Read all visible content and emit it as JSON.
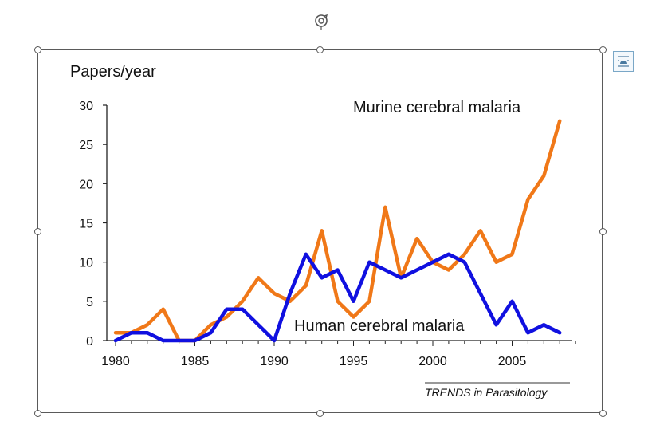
{
  "chart_data": {
    "type": "line",
    "ylabel": "Papers/year",
    "xlim": [
      1980,
      2009
    ],
    "ylim": [
      0,
      30
    ],
    "xticks": [
      1980,
      1985,
      1990,
      1995,
      2000,
      2005
    ],
    "yticks": [
      0,
      5,
      10,
      15,
      20,
      25,
      30
    ],
    "grid": false,
    "source": "TRENDS in Parasitology",
    "x": [
      1980,
      1981,
      1982,
      1983,
      1984,
      1985,
      1986,
      1987,
      1988,
      1989,
      1990,
      1991,
      1992,
      1993,
      1994,
      1995,
      1996,
      1997,
      1998,
      1999,
      2000,
      2001,
      2002,
      2003,
      2004,
      2005,
      2006,
      2007,
      2008
    ],
    "series": [
      {
        "name": "Murine cerebral malaria",
        "color": "#f07818",
        "values": [
          1,
          1,
          2,
          4,
          0,
          0,
          2,
          3,
          5,
          8,
          6,
          5,
          7,
          14,
          5,
          3,
          5,
          17,
          8,
          13,
          10,
          9,
          11,
          14,
          10,
          11,
          18,
          21,
          28
        ]
      },
      {
        "name": "Human cerebral malaria",
        "color": "#1010e0",
        "values": [
          0,
          1,
          1,
          0,
          0,
          0,
          1,
          4,
          4,
          2,
          0,
          6,
          11,
          8,
          9,
          5,
          10,
          9,
          8,
          9,
          10,
          11,
          10,
          6,
          2,
          5,
          1,
          2,
          1
        ]
      }
    ]
  }
}
